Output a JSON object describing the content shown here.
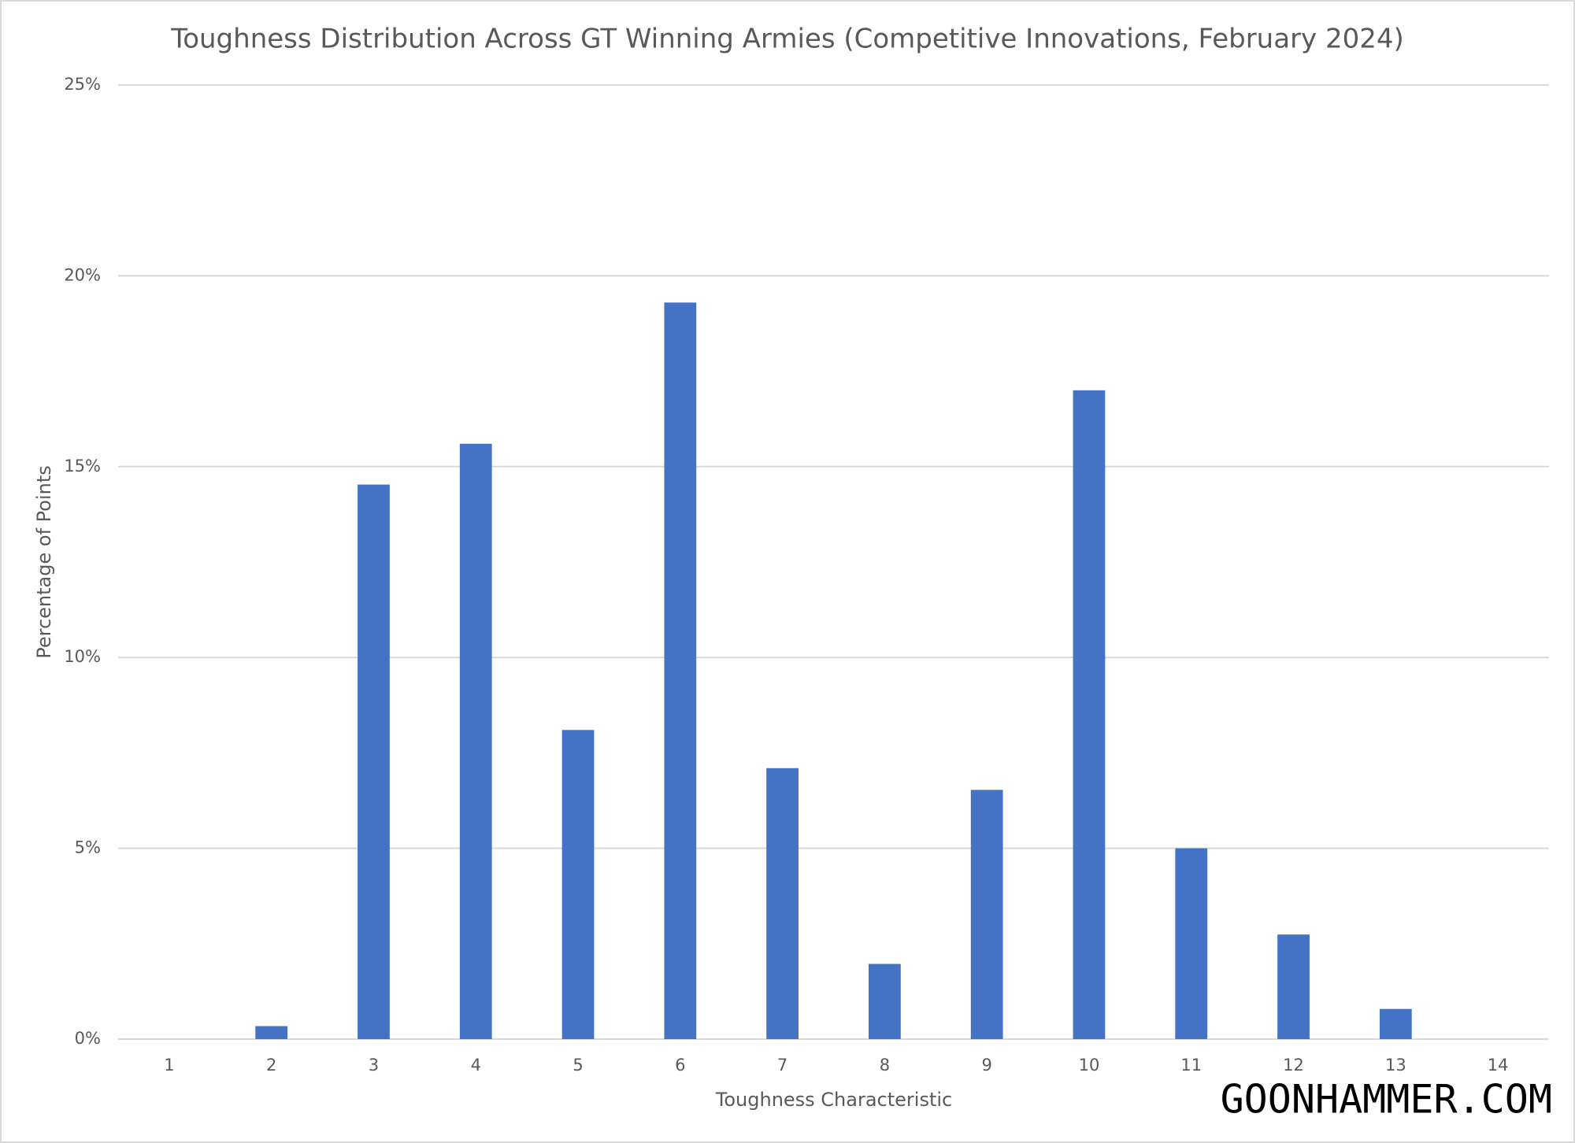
{
  "chart_data": {
    "type": "bar",
    "title": "Toughness Distribution Across GT Winning Armies (Competitive Innovations, February 2024)",
    "x_label": "Toughness Characteristic",
    "y_label": "Percentage of Points",
    "watermark": "GOONHAMMER.COM",
    "categories": [
      "1",
      "2",
      "3",
      "4",
      "5",
      "6",
      "7",
      "8",
      "9",
      "10",
      "11",
      "12",
      "13",
      "14"
    ],
    "values": [
      0,
      0.34,
      14.53,
      15.6,
      8.1,
      19.3,
      7.1,
      1.97,
      6.53,
      17.0,
      5.0,
      2.74,
      0.79,
      0
    ],
    "color": "#4472c4",
    "ylim": [
      0,
      25
    ],
    "yticks": [
      {
        "value": 0,
        "label": "0%"
      },
      {
        "value": 5,
        "label": "5%"
      },
      {
        "value": 10,
        "label": "10%"
      },
      {
        "value": 15,
        "label": "15%"
      },
      {
        "value": 20,
        "label": "20%"
      },
      {
        "value": 25,
        "label": "25%"
      }
    ],
    "grid": true
  }
}
